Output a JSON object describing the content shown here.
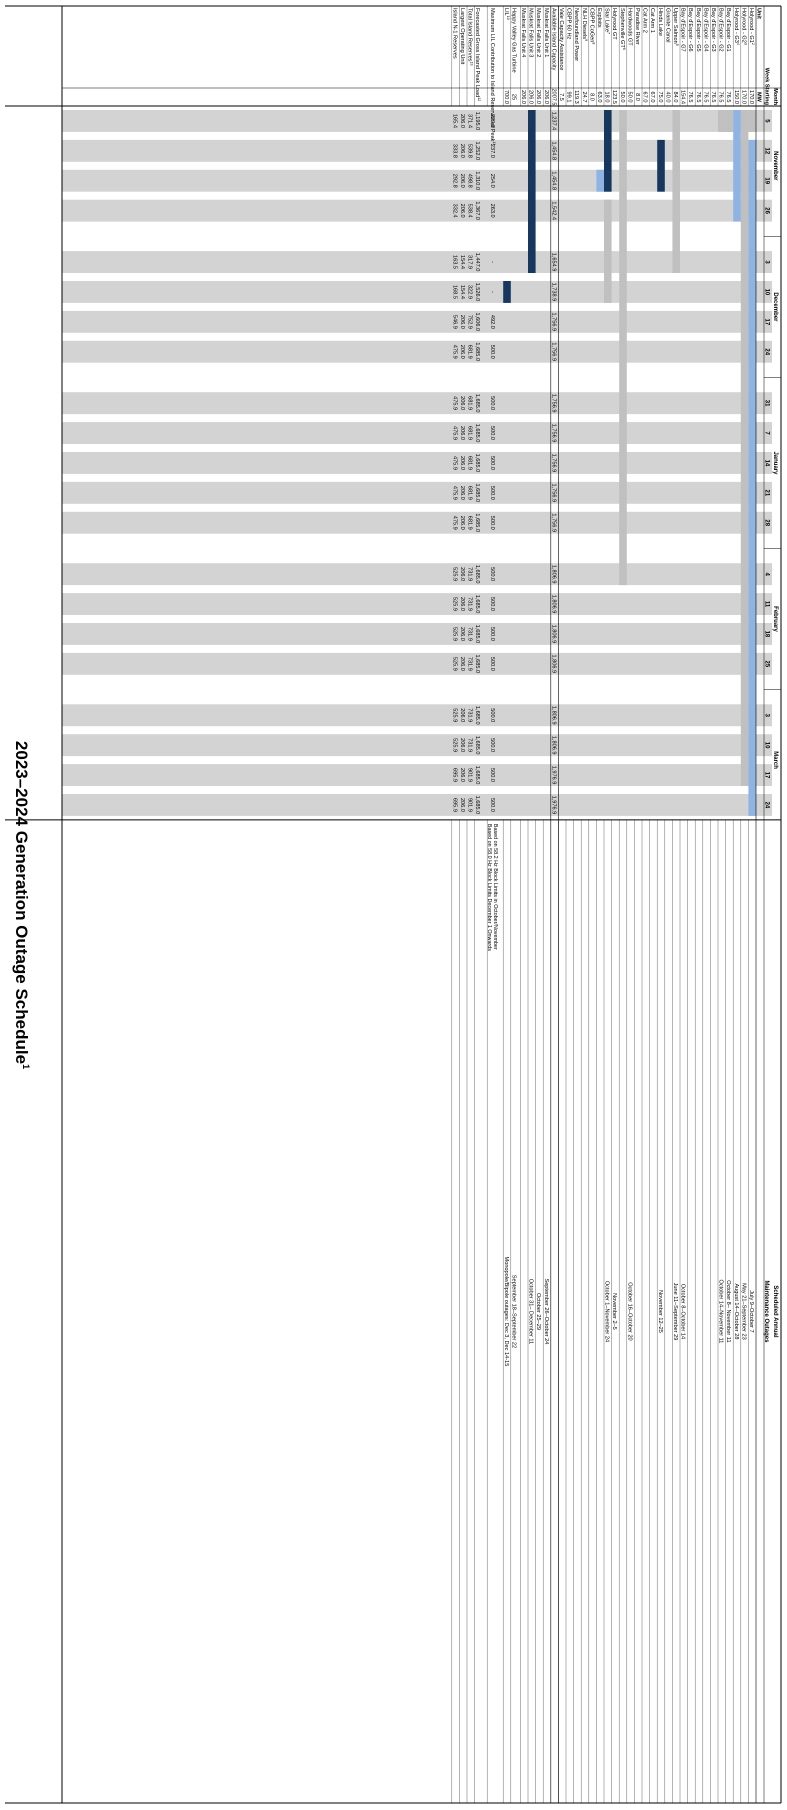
{
  "title": "2023–2024 Generation Outage Schedule",
  "title_superscript": "1",
  "colors": {
    "grid_gray": "#d3d3d3",
    "planned_gray": "#c0c0c0",
    "light_blue": "#8fb4e3",
    "dark_navy": "#17375e",
    "border": "#000000"
  },
  "header": {
    "unit_label": "Unit",
    "mw_label": "MW",
    "month_label": "Month",
    "week_label": "Week Starting",
    "maint_label_line1": "Scheduled Annual",
    "maint_label_line2": "Maintenance Outages"
  },
  "months": [
    {
      "name": "November",
      "weeks": [
        "5",
        "12",
        "19",
        "26"
      ]
    },
    {
      "name": "December",
      "weeks": [
        "3",
        "10",
        "17",
        "24"
      ]
    },
    {
      "name": "January",
      "weeks": [
        "31",
        "7",
        "14",
        "21",
        "28"
      ]
    },
    {
      "name": "February",
      "weeks": [
        "4",
        "11",
        "18",
        "25"
      ]
    },
    {
      "name": "March",
      "weeks": [
        "3",
        "10",
        "17",
        "24"
      ]
    }
  ],
  "units": [
    {
      "name": "Holyrood - G1",
      "sup": "2",
      "mw": "170.0",
      "maint": "July 9–October 7"
    },
    {
      "name": "Holyrood - G2",
      "sup": "3",
      "mw": "170.0",
      "maint": "May 21–September 23"
    },
    {
      "name": "Holyrood - G3",
      "sup": "4",
      "mw": "150.0",
      "maint": "August 14–October 28"
    },
    {
      "name": "Bay d'Espoir - G1",
      "sup": "",
      "mw": "76.5",
      "maint": "October 8– November 11"
    },
    {
      "name": "Bay d'Espoir - G2",
      "sup": "",
      "mw": "76.5",
      "maint": "October 14–November 11"
    },
    {
      "name": "Bay d'Espoir - G3",
      "sup": "",
      "mw": "76.5",
      "maint": ""
    },
    {
      "name": "Bay d'Espoir - G4",
      "sup": "",
      "mw": "76.5",
      "maint": ""
    },
    {
      "name": "Bay d'Espoir - G5",
      "sup": "",
      "mw": "76.5",
      "maint": ""
    },
    {
      "name": "Bay d'Espoir - G6",
      "sup": "",
      "mw": "76.5",
      "maint": ""
    },
    {
      "name": "Bay d'Espoir - G7",
      "sup": "",
      "mw": "154.4",
      "maint": "October 8–October 14"
    },
    {
      "name": "Upper Salmon",
      "sup": "5",
      "mw": "84.0",
      "maint": "June 11–September 29"
    },
    {
      "name": "Granite Canal",
      "sup": "",
      "mw": "40.0",
      "maint": ""
    },
    {
      "name": "Hinds Lake",
      "sup": "",
      "mw": "75.0",
      "maint": "November 12–25"
    },
    {
      "name": "Cat Arm 1",
      "sup": "",
      "mw": "67.0",
      "maint": ""
    },
    {
      "name": "Cat Arm 2",
      "sup": "",
      "mw": "67.0",
      "maint": ""
    },
    {
      "name": "Paradise River",
      "sup": "",
      "mw": "8.0",
      "maint": ""
    },
    {
      "name": "Hardwoods GT",
      "sup": "",
      "mw": "50.0",
      "maint": "October 16–October 20"
    },
    {
      "name": "Stephenville GT",
      "sup": "6",
      "mw": "50.0",
      "maint": ""
    },
    {
      "name": "Holyrood GT",
      "sup": "",
      "mw": "123.5",
      "maint": "November 2–5"
    },
    {
      "name": "Star Lake",
      "sup": "7",
      "mw": "18.0",
      "maint": "October 1–November 24"
    },
    {
      "name": "Exploits",
      "sup": "",
      "mw": "63.0",
      "maint": ""
    },
    {
      "name": "CBPP CoGen",
      "sup": "8",
      "mw": "8.0",
      "maint": ""
    },
    {
      "name": "NLH Diesels",
      "sup": "9",
      "mw": "24.7",
      "maint": ""
    },
    {
      "name": "Newfoundland Power",
      "sup": "",
      "mw": "119.3",
      "maint": ""
    },
    {
      "name": "CBPP 60 Hz",
      "sup": "",
      "mw": "99.1",
      "maint": ""
    },
    {
      "name": "Vale Capacity Assistance",
      "sup": "",
      "mw": "7.5",
      "maint": ""
    }
  ],
  "capacity": {
    "label": "Available Island Capacity",
    "mw": "2007.5",
    "values": [
      "1,237.4",
      "1,454.8",
      "1,454.8",
      "1,542.4",
      "1,654.9",
      "1,738.9",
      "1,756.9",
      "1,756.9",
      "1,756.9",
      "1,756.9",
      "1,756.9",
      "1,756.9",
      "1,756.9",
      "1,806.9",
      "1,806.9",
      "1,806.9",
      "1,806.9",
      "1,806.9",
      "1,806.9",
      "1,976.9",
      "1,976.9"
    ]
  },
  "muskrat": [
    {
      "name": "Muskrat Falls Unit 1",
      "mw": "206.0",
      "maint": "September 26–October 24"
    },
    {
      "name": "Muskrat Falls Unit 2",
      "mw": "206.0",
      "maint": "October 25–29"
    },
    {
      "name": "Muskrat Falls Unit 3",
      "mw": "206.0",
      "maint": "October 31– December 11"
    },
    {
      "name": "Muskrat Falls Unit 4",
      "mw": "206.0",
      "maint": ""
    }
  ],
  "happy_valley": {
    "name": "Happy Valley Gas Turbine",
    "mw": "25",
    "maint": "September 18–September 22"
  },
  "lil": {
    "name": "LIL",
    "sup": "10",
    "mw": "700.0",
    "maint": "Monopole/Bipole outages: Dec 3, Dec 14-15"
  },
  "ul_row": {
    "label": "Maximum LIL Contribution to Island Reserves at Peak",
    "sup": "11",
    "values": [
      "229.0",
      "237.0",
      "254.0",
      "263.0",
      "-",
      "-",
      "492.0",
      "500.0",
      "500.0",
      "500.0",
      "500.0",
      "500.0",
      "500.0",
      "500.0",
      "500.0",
      "500.0",
      "500.0",
      "500.0",
      "500.0",
      "500.0",
      "500.0"
    ],
    "maint_line1": "Based on 58.2 Hz Block Limits in October/November",
    "maint_line2": "Based on 58.0 Hz Block Limits December 1 Onwards"
  },
  "summary": [
    {
      "label": "Forecasted Gross Island Peak Load",
      "sup": "12",
      "values": [
        "1,195.0",
        "1,252.0",
        "1,310.0",
        "1,367.0",
        "1,447.0",
        "1,526.0",
        "1,606.0",
        "1,685.0",
        "1,685.0",
        "1,685.0",
        "1,685.0",
        "1,685.0",
        "1,685.0",
        "1,685.0",
        "1,685.0",
        "1,685.0",
        "1,685.0",
        "1,685.0",
        "1,685.0",
        "1,685.0",
        "1,685.0"
      ]
    },
    {
      "label": "Total Island Reserves",
      "sup": "13",
      "values": [
        "371.4",
        "539.8",
        "498.8",
        "538.4",
        "317.9",
        "322.9",
        "752.9",
        "681.9",
        "681.9",
        "681.9",
        "681.9",
        "681.9",
        "681.9",
        "731.9",
        "731.9",
        "731.9",
        "731.9",
        "731.9",
        "731.9",
        "901.9",
        "901.9"
      ]
    },
    {
      "label": "Largest Operating Unit",
      "sup": "",
      "values": [
        "206.0",
        "206.0",
        "206.0",
        "206.0",
        "154.4",
        "154.4",
        "206.0",
        "206.0",
        "206.0",
        "206.0",
        "206.0",
        "206.0",
        "206.0",
        "206.0",
        "206.0",
        "206.0",
        "206.0",
        "206.0",
        "206.0",
        "206.0",
        "206.0"
      ]
    },
    {
      "label": "Island N-1 Reserves",
      "sup": "",
      "values": [
        "165.4",
        "333.8",
        "292.8",
        "332.4",
        "163.5",
        "168.5",
        "546.9",
        "475.9",
        "475.9",
        "475.9",
        "475.9",
        "475.9",
        "475.9",
        "525.9",
        "525.9",
        "525.9",
        "525.9",
        "525.9",
        "525.9",
        "695.9",
        "695.9"
      ]
    }
  ],
  "outage_bars": [
    {
      "row": 0,
      "from_week": 0,
      "to_week": 0,
      "type": "planned_gray"
    },
    {
      "row": 0,
      "from_week": 1,
      "to_week": 20,
      "type": "light_blue"
    },
    {
      "row": 1,
      "from_week": 0,
      "to_week": 19,
      "type": "planned_gray"
    },
    {
      "row": 2,
      "from_week": 0,
      "to_week": 3,
      "type": "light_blue"
    },
    {
      "row": 3,
      "from_week": 0,
      "to_week": 0,
      "type": "planned_gray"
    },
    {
      "row": 4,
      "from_week": 0,
      "to_week": 0,
      "type": "planned_gray"
    },
    {
      "row": 10,
      "from_week": 0,
      "to_week": 4,
      "type": "planned_gray"
    },
    {
      "row": 12,
      "from_week": 1,
      "to_week": 2,
      "type": "dark_navy"
    },
    {
      "row": 17,
      "from_week": 0,
      "to_week": 13,
      "type": "planned_gray"
    },
    {
      "row": 19,
      "from_week": 0,
      "to_week": 2,
      "type": "dark_navy"
    },
    {
      "row": 19,
      "from_week": 3,
      "to_week": 5,
      "type": "planned_gray"
    },
    {
      "row": 20,
      "from_week": 2,
      "to_week": 2,
      "type": "light_blue"
    },
    {
      "row": 29,
      "from_week": 0,
      "to_week": 4,
      "type": "dark_navy"
    },
    {
      "row": 32,
      "from_week": 5,
      "to_week": 5,
      "type": "dark_navy"
    }
  ]
}
